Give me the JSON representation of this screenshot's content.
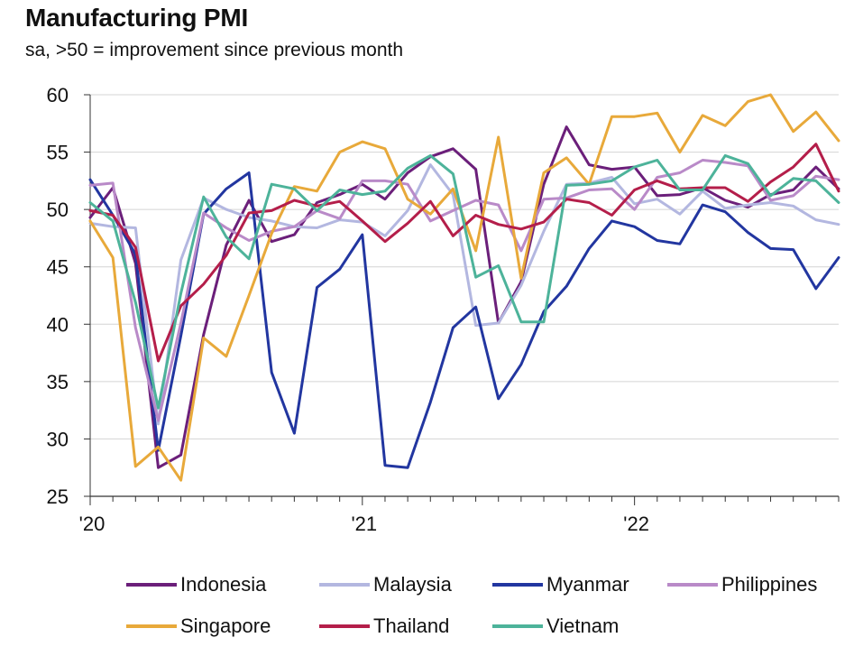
{
  "chart_data": {
    "type": "line",
    "title": "Manufacturing PMI",
    "subtitle": "sa, >50 = improvement since previous month",
    "ylim": [
      25,
      60
    ],
    "yticks": [
      60,
      55,
      50,
      45,
      40,
      35,
      30,
      25
    ],
    "xtick_labels": [
      {
        "label": "'20",
        "index": 0
      },
      {
        "label": "'21",
        "index": 12
      },
      {
        "label": "'22",
        "index": 24
      }
    ],
    "x": [
      "Jan 2020",
      "Feb 2020",
      "Mar 2020",
      "Apr 2020",
      "May 2020",
      "Jun 2020",
      "Jul 2020",
      "Aug 2020",
      "Sep 2020",
      "Oct 2020",
      "Nov 2020",
      "Dec 2020",
      "Jan 2021",
      "Feb 2021",
      "Mar 2021",
      "Apr 2021",
      "May 2021",
      "Jun 2021",
      "Jul 2021",
      "Aug 2021",
      "Sep 2021",
      "Oct 2021",
      "Nov 2021",
      "Dec 2021",
      "Jan 2022",
      "Feb 2022",
      "Mar 2022",
      "Apr 2022",
      "May 2022",
      "Jun 2022",
      "Jul 2022",
      "Aug 2022",
      "Sep 2022",
      "Oct 2022"
    ],
    "series": [
      {
        "name": "Indonesia",
        "color": "#6b1f7a",
        "values": [
          49.3,
          51.9,
          45.3,
          27.5,
          28.6,
          39.1,
          46.9,
          50.8,
          47.2,
          47.8,
          50.6,
          51.3,
          52.2,
          50.9,
          53.2,
          54.6,
          55.3,
          53.5,
          40.1,
          43.7,
          52.2,
          57.2,
          53.9,
          53.5,
          53.7,
          51.2,
          51.3,
          51.9,
          50.8,
          50.2,
          51.3,
          51.7,
          53.7,
          51.8
        ]
      },
      {
        "name": "Malaysia",
        "color": "#b3b7e0",
        "values": [
          48.8,
          48.5,
          48.4,
          31.3,
          45.6,
          51.0,
          50.0,
          49.3,
          49.0,
          48.5,
          48.4,
          49.1,
          48.9,
          47.7,
          49.9,
          53.9,
          51.3,
          39.9,
          40.1,
          43.4,
          48.1,
          52.2,
          52.3,
          52.8,
          50.5,
          50.9,
          49.6,
          51.6,
          50.1,
          50.4,
          50.6,
          50.3,
          49.1,
          48.7
        ]
      },
      {
        "name": "Myanmar",
        "color": "#2236a0",
        "values": [
          52.6,
          49.5,
          46.1,
          29.0,
          39.0,
          49.6,
          51.8,
          53.2,
          35.8,
          30.5,
          43.2,
          44.8,
          47.8,
          27.7,
          27.5,
          33.2,
          39.7,
          41.5,
          33.5,
          36.5,
          41.1,
          43.3,
          46.6,
          49.0,
          48.5,
          47.3,
          47.0,
          50.4,
          49.8,
          48.0,
          46.6,
          46.5,
          43.1,
          45.8
        ]
      },
      {
        "name": "Philippines",
        "color": "#b98ac8",
        "values": [
          52.1,
          52.3,
          39.7,
          31.6,
          40.1,
          49.7,
          48.4,
          47.3,
          48.1,
          48.5,
          49.9,
          49.2,
          52.5,
          52.5,
          52.2,
          49.0,
          49.9,
          50.8,
          50.4,
          46.4,
          50.9,
          51.0,
          51.7,
          51.8,
          50.0,
          52.8,
          53.2,
          54.3,
          54.1,
          53.8,
          50.8,
          51.2,
          52.9,
          52.6
        ]
      },
      {
        "name": "Singapore",
        "color": "#e8a93a",
        "values": [
          49.0,
          45.8,
          27.6,
          29.3,
          26.4,
          38.8,
          37.2,
          42.5,
          47.9,
          52.0,
          51.6,
          55.0,
          55.9,
          55.3,
          50.9,
          49.6,
          51.8,
          46.4,
          56.3,
          44.0,
          53.2,
          54.5,
          52.2,
          58.1,
          58.1,
          58.4,
          55.0,
          58.2,
          57.3,
          59.4,
          60.0,
          56.8,
          58.5,
          56.0
        ]
      },
      {
        "name": "Thailand",
        "color": "#b41e4a",
        "values": [
          49.9,
          49.5,
          46.7,
          36.8,
          41.6,
          43.5,
          46.0,
          49.7,
          49.9,
          50.8,
          50.3,
          50.7,
          49.0,
          47.2,
          48.8,
          50.7,
          47.7,
          49.5,
          48.7,
          48.3,
          48.9,
          50.9,
          50.6,
          49.5,
          51.7,
          52.5,
          51.8,
          51.9,
          51.9,
          50.7,
          52.4,
          53.7,
          55.7,
          51.6
        ]
      },
      {
        "name": "Vietnam",
        "color": "#4db39a",
        "values": [
          50.6,
          49.0,
          41.9,
          32.7,
          42.7,
          51.1,
          47.6,
          45.7,
          52.2,
          51.8,
          49.9,
          51.7,
          51.3,
          51.6,
          53.6,
          54.7,
          53.1,
          44.1,
          45.1,
          40.2,
          40.2,
          52.1,
          52.2,
          52.5,
          53.7,
          54.3,
          51.7,
          51.7,
          54.7,
          54.0,
          51.2,
          52.7,
          52.5,
          50.6
        ]
      }
    ],
    "legend_position": "bottom"
  }
}
